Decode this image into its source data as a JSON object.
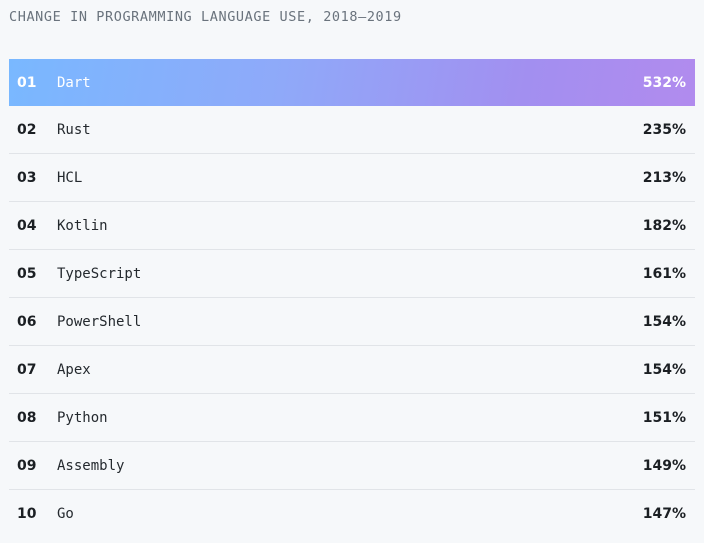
{
  "title": "CHANGE IN PROGRAMMING LANGUAGE USE, 2018–2019",
  "colors": {
    "highlight_start": "#79b8ff",
    "highlight_end": "#b18bee",
    "text": "#24292e",
    "muted": "#6a737d",
    "divider": "#e1e4e8",
    "background": "#f6f8fa"
  },
  "rows": [
    {
      "rank": "01",
      "language": "Dart",
      "change": "532%"
    },
    {
      "rank": "02",
      "language": "Rust",
      "change": "235%"
    },
    {
      "rank": "03",
      "language": "HCL",
      "change": "213%"
    },
    {
      "rank": "04",
      "language": "Kotlin",
      "change": "182%"
    },
    {
      "rank": "05",
      "language": "TypeScript",
      "change": "161%"
    },
    {
      "rank": "06",
      "language": "PowerShell",
      "change": "154%"
    },
    {
      "rank": "07",
      "language": "Apex",
      "change": "154%"
    },
    {
      "rank": "08",
      "language": "Python",
      "change": "151%"
    },
    {
      "rank": "09",
      "language": "Assembly",
      "change": "149%"
    },
    {
      "rank": "10",
      "language": "Go",
      "change": "147%"
    }
  ]
}
